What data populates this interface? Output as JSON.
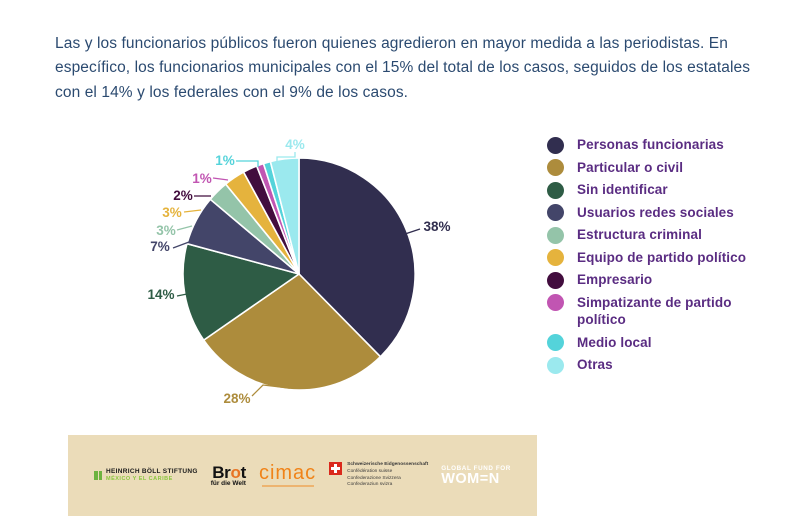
{
  "intro": {
    "text": "Las y los funcionarios públicos fueron quienes agredieron en mayor medida a las periodistas. En específico,  los funcionarios municipales con el 15% del total de los casos, seguidos de los estatales con el 14% y los federales con el 9% de los casos."
  },
  "colors": {
    "intro_text": "#2B4A70",
    "legend_text": "#5A2C82",
    "footer_bg": "#EBDCB9",
    "background": "#FFFFFF"
  },
  "chart_data": {
    "type": "pie",
    "title": "",
    "legend_position": "right",
    "direction": "clockwise",
    "start_angle_deg": 0,
    "slices": [
      {
        "label": "Personas funcionarias",
        "value": 38,
        "pct_label": "38%",
        "color": "#312E4F"
      },
      {
        "label": "Particular o civil",
        "value": 28,
        "pct_label": "28%",
        "color": "#AD8C3C"
      },
      {
        "label": "Sin identificar",
        "value": 14,
        "pct_label": "14%",
        "color": "#2E5C45"
      },
      {
        "label": "Usuarios redes sociales",
        "value": 7,
        "pct_label": "7%",
        "color": "#434569"
      },
      {
        "label": "Estructura criminal",
        "value": 3,
        "pct_label": "3%",
        "color": "#94C4A9"
      },
      {
        "label": "Equipo de partido político",
        "value": 3,
        "pct_label": "3%",
        "color": "#E5B33D"
      },
      {
        "label": "Empresario",
        "value": 2,
        "pct_label": "2%",
        "color": "#420D3E"
      },
      {
        "label": "Simpatizante de partido político",
        "value": 1,
        "pct_label": "1%",
        "color": "#C155B2"
      },
      {
        "label": "Medio local",
        "value": 1,
        "pct_label": "1%",
        "color": "#54D3DA"
      },
      {
        "label": "Otras",
        "value": 4,
        "pct_label": "4%",
        "color": "#9BE9EE"
      }
    ]
  },
  "footer": {
    "hbs": {
      "name": "HEINRICH BÖLL STIFTUNG",
      "region": "MÉXICO Y EL CARIBE"
    },
    "brot": {
      "part1": "Br",
      "part2": "o",
      "part3": "t",
      "line2": "für die Welt"
    },
    "cimac": {
      "name": "cimac"
    },
    "swiss": {
      "lines": [
        "Schweizerische Eidgenossenschaft",
        "Confédération suisse",
        "Confederazione Svizzera",
        "Confederaziun svizra"
      ]
    },
    "gfw": {
      "line1": "GLOBAL FUND FOR",
      "line2": "WOM=N"
    }
  }
}
